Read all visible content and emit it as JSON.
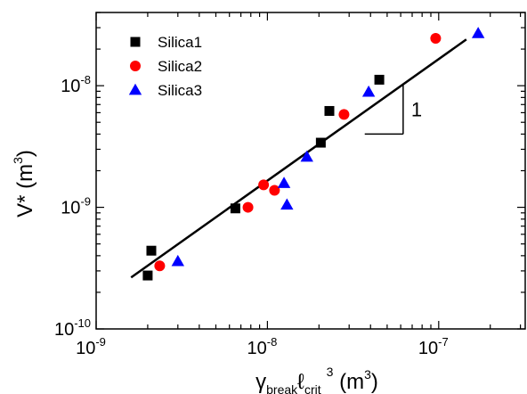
{
  "chart_data": {
    "type": "scatter",
    "x_scale": "log",
    "y_scale": "log",
    "xlim": [
      1e-09,
      3.2e-07
    ],
    "ylim": [
      1e-10,
      4e-08
    ],
    "x_ticks": [
      {
        "value": 1e-09,
        "base": "10",
        "exp": "-9"
      },
      {
        "value": 1e-08,
        "base": "10",
        "exp": "-8"
      },
      {
        "value": 1e-07,
        "base": "10",
        "exp": "-7"
      }
    ],
    "y_ticks": [
      {
        "value": 1e-10,
        "base": "10",
        "exp": "-10"
      },
      {
        "value": 1e-09,
        "base": "10",
        "exp": "-9"
      },
      {
        "value": 1e-08,
        "base": "10",
        "exp": "-8"
      }
    ],
    "xlabel": {
      "greek": "γ",
      "sub1": "break",
      "ell": "ℓ",
      "sub2": "crit",
      "sup": "3",
      "unit_pre": " (m",
      "unit_sup": "3",
      "unit_post": ")"
    },
    "ylabel": {
      "main": "V* (m",
      "sup": "3",
      "post": ")"
    },
    "legend_position": "top-left",
    "series": [
      {
        "name": "Silica1",
        "marker": "square",
        "color": "#000000",
        "points": [
          {
            "x": 2e-09,
            "y": 2.75e-10
          },
          {
            "x": 2.1e-09,
            "y": 4.4e-10
          },
          {
            "x": 6.5e-09,
            "y": 9.8e-10
          },
          {
            "x": 2.05e-08,
            "y": 3.4e-09
          },
          {
            "x": 2.3e-08,
            "y": 6.2e-09
          },
          {
            "x": 4.5e-08,
            "y": 1.12e-08
          }
        ]
      },
      {
        "name": "Silica2",
        "marker": "circle",
        "color": "#ff0000",
        "points": [
          {
            "x": 2.35e-09,
            "y": 3.3e-10
          },
          {
            "x": 7.7e-09,
            "y": 1e-09
          },
          {
            "x": 9.5e-09,
            "y": 1.53e-09
          },
          {
            "x": 1.1e-08,
            "y": 1.38e-09
          },
          {
            "x": 2.8e-08,
            "y": 5.8e-09
          },
          {
            "x": 9.6e-08,
            "y": 2.45e-08
          }
        ]
      },
      {
        "name": "Silica3",
        "marker": "triangle",
        "color": "#0000ff",
        "points": [
          {
            "x": 3e-09,
            "y": 3.6e-10
          },
          {
            "x": 1.25e-08,
            "y": 1.58e-09
          },
          {
            "x": 1.3e-08,
            "y": 1.05e-09
          },
          {
            "x": 1.7e-08,
            "y": 2.6e-09
          },
          {
            "x": 3.9e-08,
            "y": 8.9e-09
          },
          {
            "x": 1.7e-07,
            "y": 2.7e-08
          }
        ]
      }
    ],
    "fit_line": {
      "color": "#000000",
      "x_start": 1.6e-09,
      "x_end": 1.45e-07,
      "y_start": 2.65e-10,
      "y_end": 2.4e-08
    },
    "slope_triangle": {
      "x_left": 3.7e-08,
      "x_right": 6.2e-08,
      "y_bottom": 4e-09,
      "y_top": 1.02e-08,
      "label": "1"
    }
  }
}
